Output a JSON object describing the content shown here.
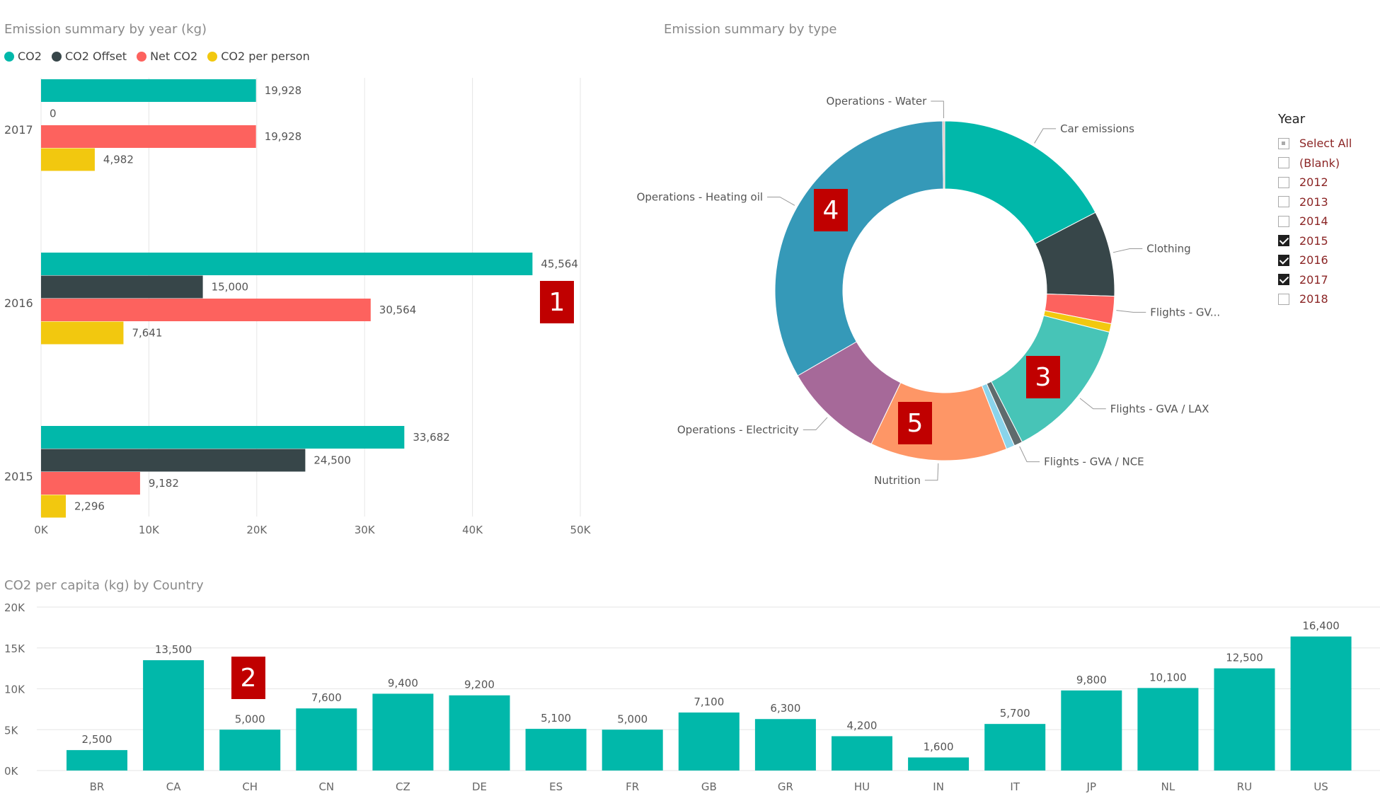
{
  "colors": {
    "co2": "#01b8aa",
    "offset": "#374649",
    "net": "#fd625e",
    "perperson": "#f2c80f"
  },
  "markers": [
    "1",
    "2",
    "3",
    "4",
    "5"
  ],
  "year_slicer": {
    "title": "Year",
    "items": [
      {
        "label": "Select All",
        "state": "partial"
      },
      {
        "label": "(Blank)",
        "state": "unchecked"
      },
      {
        "label": "2012",
        "state": "unchecked"
      },
      {
        "label": "2013",
        "state": "unchecked"
      },
      {
        "label": "2014",
        "state": "unchecked"
      },
      {
        "label": "2015",
        "state": "checked"
      },
      {
        "label": "2016",
        "state": "checked"
      },
      {
        "label": "2017",
        "state": "checked"
      },
      {
        "label": "2018",
        "state": "unchecked"
      }
    ]
  },
  "chart_data": [
    {
      "type": "bar",
      "orientation": "horizontal",
      "title": "Emission summary by year (kg)",
      "categories": [
        "2017",
        "2016",
        "2015"
      ],
      "series": [
        {
          "name": "CO2",
          "values": [
            19928,
            45564,
            33682
          ],
          "labels": [
            "19,928",
            "45,564",
            "33,682"
          ]
        },
        {
          "name": "CO2 Offset",
          "values": [
            0,
            15000,
            24500
          ],
          "labels": [
            "0",
            "15,000",
            "24,500"
          ]
        },
        {
          "name": "Net CO2",
          "values": [
            19928,
            30564,
            9182
          ],
          "labels": [
            "19,928",
            "30,564",
            "9,182"
          ]
        },
        {
          "name": "CO2 per person",
          "values": [
            4982,
            7641,
            2296
          ],
          "labels": [
            "4,982",
            "7,641",
            "2,296"
          ]
        }
      ],
      "xlim": [
        0,
        50000
      ],
      "xticks": [
        "0K",
        "10K",
        "20K",
        "30K",
        "40K",
        "50K"
      ],
      "grid": true,
      "legend": "top-left"
    },
    {
      "type": "pie",
      "variant": "donut",
      "title": "Emission summary by type",
      "slices": [
        {
          "label": "Car emissions",
          "value": 17.3,
          "color": "#01b8aa"
        },
        {
          "label": "Clothing",
          "value": 8.1,
          "color": "#374649"
        },
        {
          "label": "Flights - GV...",
          "value": 2.6,
          "color": "#fd625e"
        },
        {
          "label": "",
          "value": 0.8,
          "color": "#f2c80f"
        },
        {
          "label": "Flights - GVA / LAX",
          "value": 13.5,
          "color": "#47c4b7"
        },
        {
          "label": "Flights - GVA / NCE",
          "value": 0.8,
          "color": "#5f6b6d"
        },
        {
          "label": "",
          "value": 0.8,
          "color": "#8ad4eb"
        },
        {
          "label": "Nutrition",
          "value": 13.0,
          "color": "#fe9666"
        },
        {
          "label": "Operations - Electricity",
          "value": 9.5,
          "color": "#a66999"
        },
        {
          "label": "Operations - Heating oil",
          "value": 33.0,
          "color": "#3599b8"
        },
        {
          "label": "Operations - Water",
          "value": 0.2,
          "color": "#dfbfbf"
        }
      ],
      "legend": "none"
    },
    {
      "type": "bar",
      "title": "CO2 per capita (kg) by Country",
      "categories": [
        "BR",
        "CA",
        "CH",
        "CN",
        "CZ",
        "DE",
        "ES",
        "FR",
        "GB",
        "GR",
        "HU",
        "IN",
        "IT",
        "JP",
        "NL",
        "RU",
        "US"
      ],
      "values": [
        2500,
        13500,
        5000,
        7600,
        9400,
        9200,
        5100,
        5000,
        7100,
        6300,
        4200,
        1600,
        5700,
        9800,
        10100,
        12500,
        16400
      ],
      "labels": [
        "2,500",
        "13,500",
        "5,000",
        "7,600",
        "9,400",
        "9,200",
        "5,100",
        "5,000",
        "7,100",
        "6,300",
        "4,200",
        "1,600",
        "5,700",
        "9,800",
        "10,100",
        "12,500",
        "16,400"
      ],
      "ylim": [
        0,
        20000
      ],
      "yticks": [
        "0K",
        "5K",
        "10K",
        "15K",
        "20K"
      ],
      "grid": true
    }
  ]
}
